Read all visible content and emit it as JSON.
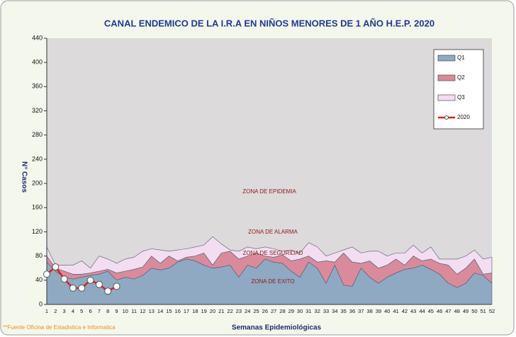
{
  "chart_data": {
    "type": "stacked_area_line",
    "title": "CANAL ENDEMICO DE LA I.R.A EN NIÑOS MENORES DE 1 AÑO H.E.P. 2020",
    "xlabel": "Semanas Epidemiológicas",
    "ylabel": "N° Casos",
    "footnote": "**Fuente Oficina de Estadistica e Informatica",
    "annotations": [
      "ZONA DE EPIDEMIA",
      "ZONA DE ALARMA",
      "ZONA DE SEGURIDAD",
      "ZONA DE EXITO"
    ],
    "categories": [
      1,
      2,
      3,
      4,
      5,
      6,
      7,
      8,
      9,
      10,
      11,
      12,
      13,
      14,
      15,
      16,
      17,
      18,
      19,
      20,
      21,
      22,
      23,
      24,
      25,
      26,
      27,
      28,
      29,
      30,
      31,
      32,
      33,
      34,
      35,
      36,
      37,
      38,
      39,
      40,
      41,
      42,
      43,
      44,
      45,
      46,
      47,
      48,
      49,
      50,
      51,
      52
    ],
    "ylim": [
      0,
      440
    ],
    "yticks": [
      0,
      40,
      80,
      120,
      160,
      200,
      240,
      280,
      320,
      360,
      400,
      440
    ],
    "legend": "upper right",
    "background_color": "#dcdada",
    "series": [
      {
        "name": "Q1",
        "color": "#8fa9c3",
        "values": [
          70,
          55,
          45,
          42,
          45,
          48,
          50,
          55,
          40,
          45,
          42,
          48,
          60,
          57,
          60,
          70,
          75,
          72,
          65,
          60,
          62,
          65,
          45,
          65,
          60,
          75,
          70,
          68,
          55,
          45,
          70,
          60,
          35,
          65,
          32,
          30,
          60,
          45,
          35,
          45,
          52,
          58,
          60,
          65,
          58,
          50,
          35,
          28,
          35,
          52,
          48,
          35
        ]
      },
      {
        "name": "Q2",
        "color": "#d98b9b",
        "values": [
          10,
          5,
          10,
          8,
          5,
          4,
          5,
          3,
          12,
          10,
          16,
          14,
          20,
          11,
          20,
          2,
          3,
          8,
          20,
          5,
          23,
          23,
          30,
          15,
          25,
          5,
          8,
          14,
          17,
          30,
          10,
          10,
          37,
          5,
          53,
          40,
          8,
          27,
          25,
          20,
          23,
          7,
          20,
          7,
          17,
          18,
          30,
          22,
          25,
          23,
          2,
          17
        ]
      },
      {
        "name": "Q3",
        "color": "#f3ddf0",
        "values": [
          15,
          5,
          10,
          15,
          22,
          8,
          25,
          17,
          16,
          20,
          20,
          26,
          12,
          22,
          8,
          18,
          14,
          15,
          13,
          47,
          15,
          2,
          13,
          15,
          7,
          15,
          14,
          6,
          18,
          10,
          22,
          25,
          8,
          15,
          5,
          25,
          17,
          16,
          28,
          15,
          10,
          20,
          18,
          13,
          20,
          7,
          10,
          25,
          20,
          15,
          25,
          26
        ]
      },
      {
        "name": "2020",
        "color": "#e8191b",
        "line": true,
        "values": [
          50,
          62,
          42,
          27,
          27,
          40,
          33,
          22,
          30,
          null,
          null,
          null,
          null,
          null,
          null,
          null,
          null,
          null,
          null,
          null,
          null,
          null,
          null,
          null,
          null,
          null,
          null,
          null,
          null,
          null,
          null,
          null,
          null,
          null,
          null,
          null,
          null,
          null,
          null,
          null,
          null,
          null,
          null,
          null,
          null,
          null,
          null,
          null,
          null,
          null,
          null,
          null
        ]
      }
    ]
  }
}
